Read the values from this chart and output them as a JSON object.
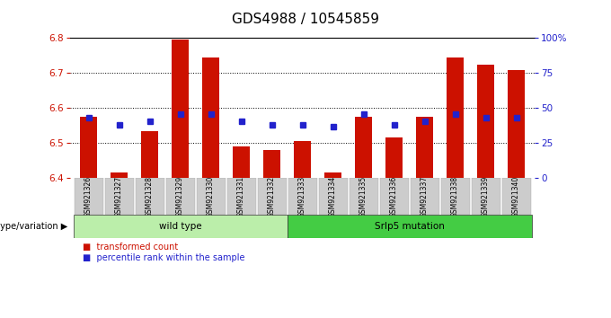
{
  "title": "GDS4988 / 10545859",
  "samples": [
    "GSM921326",
    "GSM921327",
    "GSM921328",
    "GSM921329",
    "GSM921330",
    "GSM921331",
    "GSM921332",
    "GSM921333",
    "GSM921334",
    "GSM921335",
    "GSM921336",
    "GSM921337",
    "GSM921338",
    "GSM921339",
    "GSM921340"
  ],
  "bar_values": [
    6.575,
    6.415,
    6.535,
    6.795,
    6.745,
    6.49,
    6.48,
    6.505,
    6.415,
    6.575,
    6.515,
    6.575,
    6.745,
    6.725,
    6.71
  ],
  "percentile_values": [
    6.573,
    6.553,
    6.563,
    6.583,
    6.583,
    6.563,
    6.553,
    6.553,
    6.547,
    6.583,
    6.553,
    6.563,
    6.583,
    6.573,
    6.573
  ],
  "ylim": [
    6.4,
    6.8
  ],
  "yticks_left": [
    6.4,
    6.5,
    6.6,
    6.7,
    6.8
  ],
  "yticks_right": [
    0,
    25,
    50,
    75,
    100
  ],
  "bar_color": "#cc1100",
  "dot_color": "#2222cc",
  "bar_bottom": 6.4,
  "groups": [
    {
      "label": "wild type",
      "start": 0,
      "end": 7,
      "color": "#bbeeaa"
    },
    {
      "label": "Srlp5 mutation",
      "start": 7,
      "end": 15,
      "color": "#44cc44"
    }
  ],
  "legend_items": [
    {
      "label": "transformed count",
      "color": "#cc1100"
    },
    {
      "label": "percentile rank within the sample",
      "color": "#2222cc"
    }
  ],
  "genotype_label": "genotype/variation",
  "plot_bg": "#ffffff",
  "axis_color_left": "#cc1100",
  "axis_color_right": "#2222cc",
  "title_fontsize": 11,
  "tick_label_bg": "#cccccc"
}
